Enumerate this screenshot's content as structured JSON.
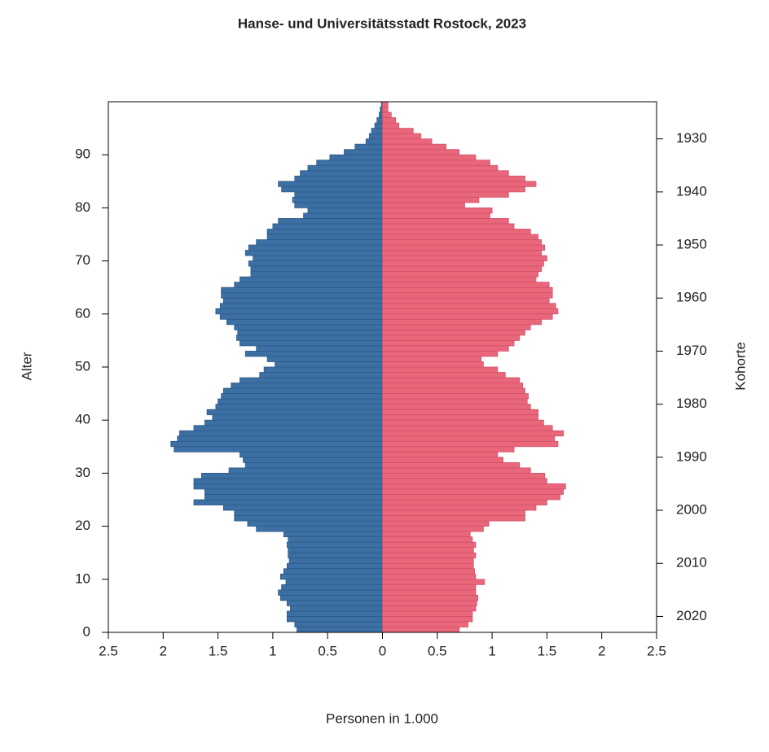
{
  "chart_data": {
    "type": "pyramid",
    "title": "Hanse- und Universitätsstadt Rostock, 2023",
    "xlabel": "Personen in 1.000",
    "ylabel": "Alter",
    "y2label": "Kohorte",
    "xlim": [
      -2.5,
      2.5
    ],
    "xticks": [
      {
        "value": -2.5,
        "label": "2.5"
      },
      {
        "value": -2,
        "label": "2"
      },
      {
        "value": -1.5,
        "label": "1.5"
      },
      {
        "value": -1,
        "label": "1"
      },
      {
        "value": -0.5,
        "label": "0.5"
      },
      0,
      0.5,
      1,
      1.5,
      2,
      2.5
    ],
    "ylim": [
      0,
      100
    ],
    "yticks": [
      0,
      10,
      20,
      30,
      40,
      50,
      60,
      70,
      80,
      90
    ],
    "y2lim": [
      2023,
      1923
    ],
    "y2ticks": [
      1930,
      1940,
      1950,
      1960,
      1970,
      1980,
      1990,
      2000,
      2010,
      2020
    ],
    "y": [
      0,
      1,
      2,
      3,
      4,
      5,
      6,
      7,
      8,
      9,
      10,
      11,
      12,
      13,
      14,
      15,
      16,
      17,
      18,
      19,
      20,
      21,
      22,
      23,
      24,
      25,
      26,
      27,
      28,
      29,
      30,
      31,
      32,
      33,
      34,
      35,
      36,
      37,
      38,
      39,
      40,
      41,
      42,
      43,
      44,
      45,
      46,
      47,
      48,
      49,
      50,
      51,
      52,
      53,
      54,
      55,
      56,
      57,
      58,
      59,
      60,
      61,
      62,
      63,
      64,
      65,
      66,
      67,
      68,
      69,
      70,
      71,
      72,
      73,
      74,
      75,
      76,
      77,
      78,
      79,
      80,
      81,
      82,
      83,
      84,
      85,
      86,
      87,
      88,
      89,
      90,
      91,
      92,
      93,
      94,
      95,
      96,
      97,
      98,
      99
    ],
    "series": [
      {
        "color": "#3c6fa3",
        "values": [
          -0.78,
          -0.8,
          -0.87,
          -0.87,
          -0.84,
          -0.87,
          -0.93,
          -0.95,
          -0.92,
          -0.88,
          -0.93,
          -0.9,
          -0.87,
          -0.85,
          -0.86,
          -0.86,
          -0.87,
          -0.86,
          -0.9,
          -1.15,
          -1.23,
          -1.35,
          -1.35,
          -1.45,
          -1.72,
          -1.62,
          -1.62,
          -1.72,
          -1.72,
          -1.65,
          -1.4,
          -1.25,
          -1.27,
          -1.3,
          -1.9,
          -1.93,
          -1.87,
          -1.85,
          -1.72,
          -1.62,
          -1.55,
          -1.6,
          -1.52,
          -1.5,
          -1.47,
          -1.45,
          -1.38,
          -1.3,
          -1.12,
          -1.08,
          -0.98,
          -1.05,
          -1.25,
          -1.15,
          -1.3,
          -1.33,
          -1.32,
          -1.35,
          -1.42,
          -1.48,
          -1.52,
          -1.48,
          -1.45,
          -1.47,
          -1.47,
          -1.35,
          -1.3,
          -1.2,
          -1.2,
          -1.22,
          -1.18,
          -1.25,
          -1.22,
          -1.15,
          -1.05,
          -1.05,
          -1.0,
          -0.95,
          -0.72,
          -0.68,
          -0.8,
          -0.82,
          -0.8,
          -0.92,
          -0.95,
          -0.8,
          -0.75,
          -0.68,
          -0.6,
          -0.48,
          -0.35,
          -0.25,
          -0.15,
          -0.12,
          -0.1,
          -0.07,
          -0.05,
          -0.03,
          -0.02,
          -0.01
        ]
      },
      {
        "color": "#e9677b",
        "values": [
          0.7,
          0.78,
          0.82,
          0.82,
          0.85,
          0.86,
          0.87,
          0.85,
          0.85,
          0.93,
          0.85,
          0.84,
          0.83,
          0.83,
          0.85,
          0.83,
          0.85,
          0.82,
          0.8,
          0.92,
          0.97,
          1.3,
          1.3,
          1.4,
          1.5,
          1.62,
          1.65,
          1.67,
          1.5,
          1.48,
          1.35,
          1.25,
          1.1,
          1.05,
          1.2,
          1.6,
          1.57,
          1.65,
          1.55,
          1.47,
          1.42,
          1.42,
          1.35,
          1.32,
          1.33,
          1.3,
          1.28,
          1.25,
          1.12,
          1.05,
          0.92,
          0.9,
          1.05,
          1.15,
          1.2,
          1.25,
          1.3,
          1.35,
          1.45,
          1.55,
          1.6,
          1.58,
          1.52,
          1.55,
          1.55,
          1.52,
          1.4,
          1.42,
          1.45,
          1.47,
          1.5,
          1.45,
          1.48,
          1.45,
          1.42,
          1.35,
          1.2,
          1.15,
          0.98,
          1.0,
          0.75,
          0.88,
          1.15,
          1.3,
          1.4,
          1.3,
          1.15,
          1.05,
          0.98,
          0.85,
          0.7,
          0.58,
          0.45,
          0.35,
          0.28,
          0.15,
          0.12,
          0.08,
          0.05,
          0.05
        ]
      }
    ]
  }
}
